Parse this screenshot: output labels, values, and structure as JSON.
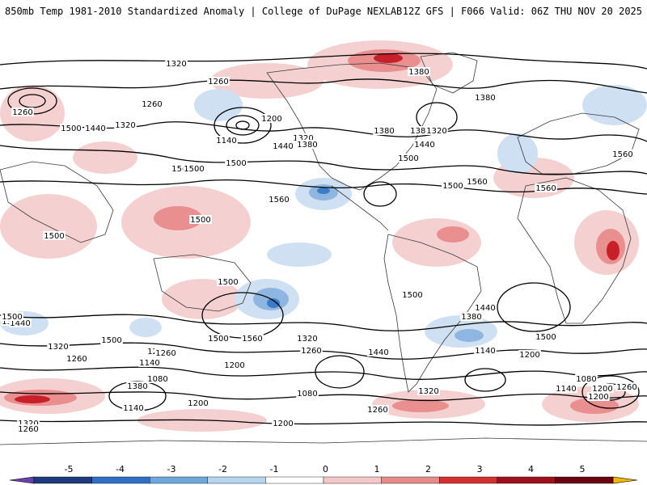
{
  "header": {
    "title_left": "850mb Temp 1981-2010 Standardized Anomaly | College of DuPage NEXLAB",
    "title_right": "12Z GFS | F066 Valid: 06Z THU NOV 20 2025"
  },
  "map": {
    "contour_labels": [
      "1320",
      "1380",
      "1260",
      "1380",
      "1260",
      "1260",
      "1500",
      "1440",
      "1320",
      "1200",
      "1320",
      "1380",
      "1140",
      "1440",
      "1380",
      "1380",
      "1320",
      "1440",
      "1500",
      "1560",
      "1560",
      "1500",
      "1560",
      "1500",
      "1500",
      "1500",
      "1440",
      "1500",
      "1560",
      "1320",
      "1500",
      "1380",
      "1380",
      "1440",
      "1320",
      "1440",
      "1500",
      "1200",
      "1260",
      "1260",
      "1140",
      "1200",
      "1380",
      "1140",
      "1080",
      "1200",
      "1260",
      "1080",
      "1200",
      "1260",
      "1320",
      "1200",
      "1140",
      "1200",
      "1080",
      "1140",
      "1200",
      "1260",
      "1320",
      "1260",
      "1500",
      "1500",
      "1500",
      "1560",
      "1500",
      "1560"
    ],
    "colors": {
      "coast": "#3a3a3a",
      "contour": "#000000",
      "warm_light": "#f5d0d0",
      "warm_mid": "#e98f8f",
      "warm_strong": "#c8202a",
      "warm_extreme": "#7a0010",
      "cold_light": "#cfe0f2",
      "cold_mid": "#8fb6e0",
      "cold_strong": "#3a7cc8"
    }
  },
  "colorbar": {
    "tick_labels": [
      "-5",
      "-4",
      "-3",
      "-2",
      "-1",
      "0",
      "1",
      "2",
      "3",
      "4",
      "5"
    ],
    "segment_colors": [
      "#6a3fb0",
      "#1f3a7a",
      "#2f6fc6",
      "#6fa8dc",
      "#b8d4ef",
      "#ffffff",
      "#f5c8c8",
      "#e68a8a",
      "#d43030",
      "#a0101c",
      "#6a0010",
      "#f2b800"
    ]
  }
}
